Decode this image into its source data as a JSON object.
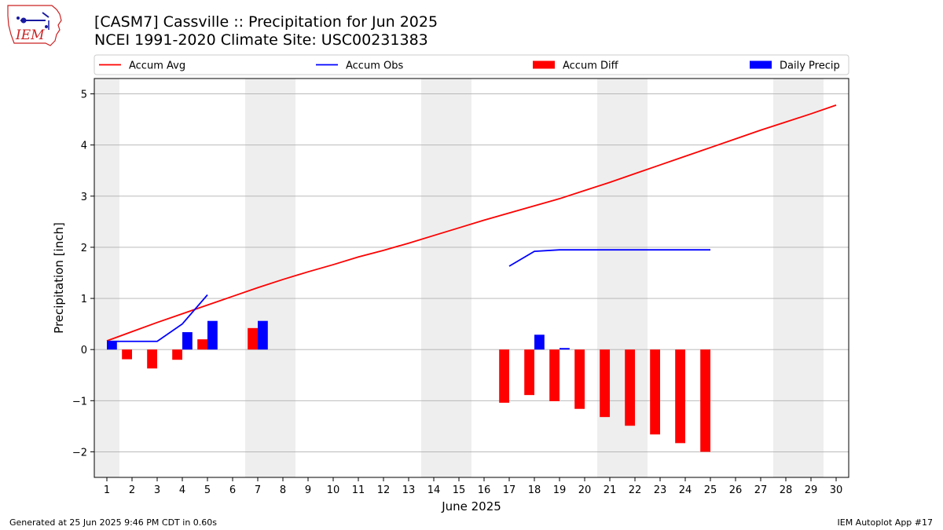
{
  "header": {
    "logo_text": "IEM",
    "title_line1": "[CASM7] Cassville :: Precipitation for Jun 2025",
    "title_line2": "NCEI 1991-2020 Climate Site: USC00231383"
  },
  "footer": {
    "generated": "Generated at 25 Jun 2025 9:46 PM CDT in 0.60s",
    "app": "IEM Autoplot App #17"
  },
  "colors": {
    "avg": "#ff0000",
    "obs": "#0000ff",
    "diff": "#ff0000",
    "daily": "#0000ff",
    "weekend_shade": "#eeeeee",
    "grid": "#b0b0b0"
  },
  "chart_data": {
    "type": "bar",
    "xlabel": "June 2025",
    "ylabel": "Precipitation [inch]",
    "xlim": [
      0.5,
      30.5
    ],
    "ylim": [
      -2.5,
      5.3
    ],
    "yticks": [
      -2,
      -1,
      0,
      1,
      2,
      3,
      4,
      5
    ],
    "ytick_labels": [
      "−2",
      "−1",
      "0",
      "1",
      "2",
      "3",
      "4",
      "5"
    ],
    "x": [
      1,
      2,
      3,
      4,
      5,
      6,
      7,
      8,
      9,
      10,
      11,
      12,
      13,
      14,
      15,
      16,
      17,
      18,
      19,
      20,
      21,
      22,
      23,
      24,
      25,
      26,
      27,
      28,
      29,
      30
    ],
    "grid": "horizontal",
    "legend_position": "top",
    "shaded_weekend_days": [
      [
        1,
        1
      ],
      [
        7,
        8
      ],
      [
        14,
        15
      ],
      [
        21,
        22
      ],
      [
        28,
        29
      ]
    ],
    "series": [
      {
        "name": "Accum Avg",
        "kind": "line",
        "color": "#ff0000",
        "x": [
          1,
          2,
          3,
          4,
          5,
          6,
          7,
          8,
          9,
          10,
          11,
          12,
          13,
          14,
          15,
          16,
          17,
          18,
          19,
          20,
          21,
          22,
          23,
          24,
          25,
          26,
          27,
          28,
          29,
          30
        ],
        "values": [
          0.17,
          0.35,
          0.53,
          0.7,
          0.87,
          1.04,
          1.21,
          1.37,
          1.52,
          1.66,
          1.81,
          1.94,
          2.08,
          2.23,
          2.38,
          2.53,
          2.67,
          2.81,
          2.95,
          3.11,
          3.27,
          3.44,
          3.61,
          3.78,
          3.95,
          4.12,
          4.29,
          4.45,
          4.61,
          4.78
        ]
      },
      {
        "name": "Accum Obs",
        "kind": "line",
        "color": "#0000ff",
        "segments": [
          {
            "x": [
              1,
              2,
              3,
              4,
              5
            ],
            "values": [
              0.16,
              0.16,
              0.16,
              0.5,
              1.07
            ]
          },
          {
            "x": [
              17,
              18,
              19,
              20,
              21,
              22,
              23,
              24,
              25
            ],
            "values": [
              1.63,
              1.92,
              1.95,
              1.95,
              1.95,
              1.95,
              1.95,
              1.95,
              1.95
            ]
          }
        ]
      },
      {
        "name": "Accum Diff",
        "kind": "bar",
        "offset": -0.2,
        "color": "#ff0000",
        "x": [
          2,
          3,
          4,
          5,
          7,
          17,
          18,
          19,
          20,
          21,
          22,
          23,
          24,
          25
        ],
        "values": [
          -0.19,
          -0.37,
          -0.2,
          0.2,
          0.42,
          -1.04,
          -0.89,
          -1.01,
          -1.16,
          -1.32,
          -1.49,
          -1.66,
          -1.83,
          -2.0
        ]
      },
      {
        "name": "Daily Precip",
        "kind": "bar",
        "offset": 0.2,
        "color": "#0000ff",
        "x": [
          1,
          4,
          5,
          7,
          18,
          19
        ],
        "values": [
          0.16,
          0.34,
          0.56,
          0.56,
          0.29,
          0.03
        ]
      }
    ]
  }
}
